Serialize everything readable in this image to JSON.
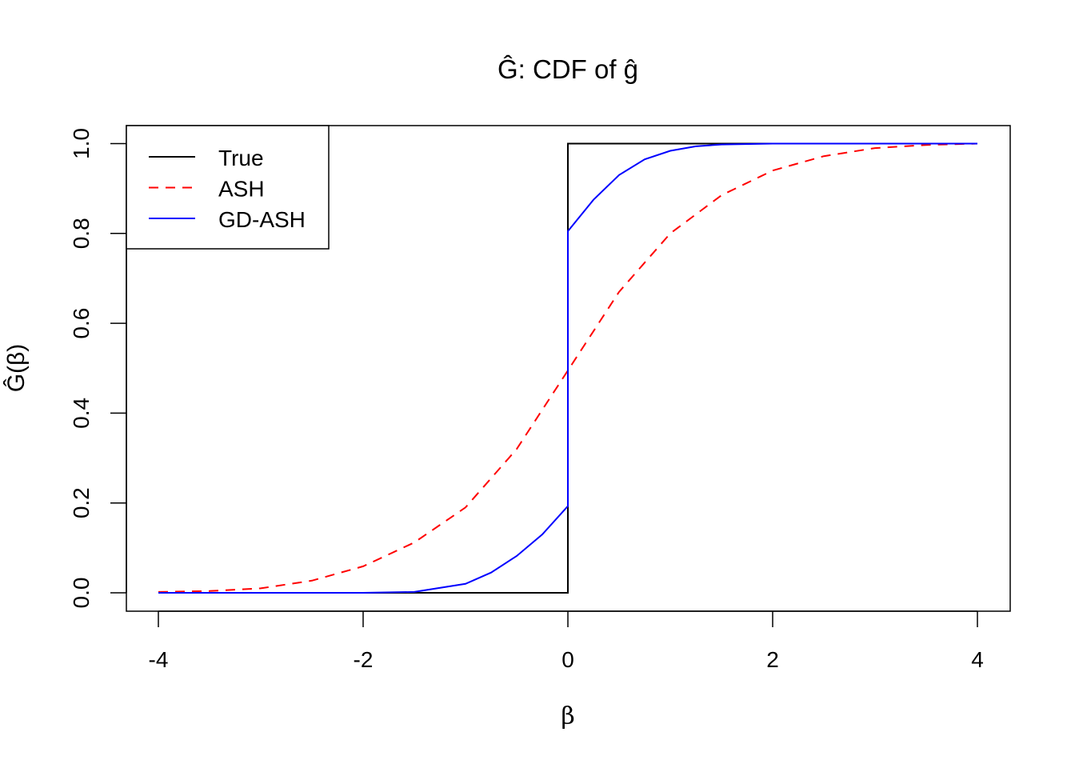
{
  "chart_data": {
    "type": "line",
    "title": "Ĝ: CDF of ĝ",
    "xlabel": "β",
    "ylabel": "Ĝ(β)",
    "xlim": [
      -4.3,
      4.3
    ],
    "ylim": [
      -0.04,
      1.04
    ],
    "xticks": [
      "-4",
      "-2",
      "0",
      "2",
      "4"
    ],
    "xtick_values": [
      -4,
      -2,
      0,
      2,
      4
    ],
    "yticks": [
      "0.0",
      "0.2",
      "0.4",
      "0.6",
      "0.8",
      "1.0"
    ],
    "ytick_values": [
      0,
      0.2,
      0.4,
      0.6,
      0.8,
      1.0
    ],
    "grid": false,
    "legend": "top-left",
    "series": [
      {
        "name": "True",
        "color": "#000000",
        "dash": "solid",
        "x": [
          -4,
          0,
          0,
          4
        ],
        "y": [
          0,
          0,
          1,
          1
        ]
      },
      {
        "name": "ASH",
        "color": "#ff0000",
        "dash": "dashed",
        "x": [
          -4,
          -3.5,
          -3,
          -2.5,
          -2,
          -1.5,
          -1,
          -0.5,
          0,
          0.5,
          1,
          1.5,
          2,
          2.5,
          3,
          3.5,
          4
        ],
        "y": [
          0.002,
          0.004,
          0.01,
          0.027,
          0.059,
          0.112,
          0.19,
          0.32,
          0.495,
          0.67,
          0.8,
          0.885,
          0.94,
          0.972,
          0.99,
          0.997,
          1.0
        ]
      },
      {
        "name": "GD-ASH",
        "color": "#0000ff",
        "dash": "solid",
        "x": [
          -4,
          -2,
          -1.5,
          -1,
          -0.75,
          -0.5,
          -0.25,
          0,
          0,
          0.25,
          0.5,
          0.75,
          1,
          1.25,
          1.5,
          2,
          4
        ],
        "y": [
          0,
          0,
          0.002,
          0.02,
          0.045,
          0.082,
          0.13,
          0.193,
          0.805,
          0.875,
          0.93,
          0.965,
          0.984,
          0.994,
          0.998,
          1.0,
          1.0
        ]
      }
    ]
  }
}
